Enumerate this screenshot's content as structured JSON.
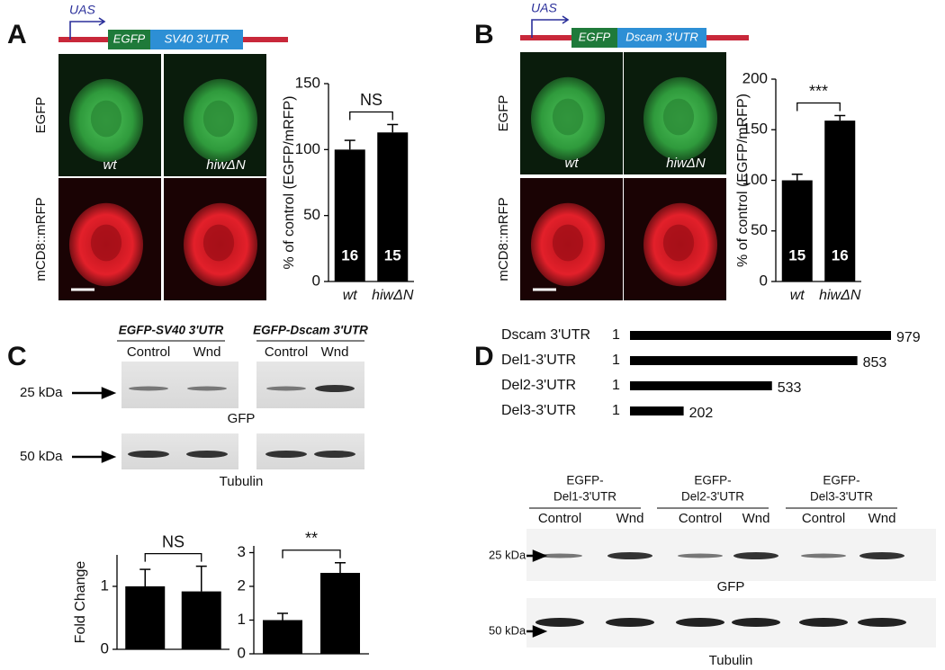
{
  "figure": {
    "panel_labels": [
      "A",
      "B",
      "C",
      "D"
    ],
    "construct_a": {
      "promoter": "UAS",
      "reporter": "EGFP",
      "utr": "SV40 3'UTR"
    },
    "construct_b": {
      "promoter": "UAS",
      "reporter": "EGFP",
      "utr": "Dscam 3'UTR"
    },
    "images_a": {
      "rows": [
        "EGFP",
        "mCD8::mRFP"
      ],
      "cols": [
        "wt",
        "hiwΔN"
      ]
    },
    "images_b": {
      "rows": [
        "EGFP",
        "mCD8::mRFP"
      ],
      "cols": [
        "wt",
        "hiwΔN"
      ]
    },
    "blot_c": {
      "constructs": [
        "EGFP-SV40 3'UTR",
        "EGFP-Dscam 3'UTR"
      ],
      "lanes": [
        "Control",
        "Wnd",
        "Control",
        "Wnd"
      ],
      "markers": [
        "25 kDa",
        "50 kDa"
      ],
      "proteins": [
        "GFP",
        "Tubulin"
      ]
    },
    "blot_d": {
      "constructs": [
        [
          "EGFP-",
          "Del1-3'UTR"
        ],
        [
          "EGFP-",
          "Del2-3'UTR"
        ],
        [
          "EGFP-",
          "Del3-3'UTR"
        ]
      ],
      "lanes": [
        "Control",
        "Wnd",
        "Control",
        "Wnd",
        "Control",
        "Wnd"
      ],
      "markers": [
        "25 kDa",
        "50 kDa"
      ],
      "proteins": [
        "GFP",
        "Tubulin"
      ]
    }
  },
  "chart_data": [
    {
      "type": "bar",
      "ylabel": "% of control (EGFP/mRFP)",
      "categories": [
        "wt",
        "hiwΔN"
      ],
      "values": [
        100,
        113
      ],
      "errors": [
        7,
        6
      ],
      "n": [
        16,
        15
      ],
      "annotation": "NS",
      "color": "#000000",
      "ylim": [
        0,
        150
      ],
      "yticks": [
        0,
        50,
        100,
        150
      ]
    },
    {
      "type": "bar",
      "ylabel": "% of control (EGFP/mRFP)",
      "categories": [
        "wt",
        "hiwΔN"
      ],
      "values": [
        100,
        159
      ],
      "errors": [
        6,
        5
      ],
      "n": [
        15,
        16
      ],
      "annotation": "***",
      "color": "#000000",
      "ylim": [
        0,
        200
      ],
      "yticks": [
        0,
        50,
        100,
        150,
        200
      ]
    },
    {
      "type": "bar",
      "ylabel": "Fold Change",
      "values": [
        1,
        0.92
      ],
      "errors": [
        0.27,
        0.4
      ],
      "annotation": "NS",
      "color": "#000000",
      "ylim": [
        0,
        1.5
      ],
      "yticks": [
        0,
        1
      ]
    },
    {
      "type": "bar",
      "values": [
        1,
        2.4
      ],
      "errors": [
        0.2,
        0.3
      ],
      "annotation": "**",
      "color": "#000000",
      "ylim": [
        0,
        3.2
      ],
      "yticks": [
        0,
        1,
        2,
        3
      ]
    },
    {
      "type": "bar",
      "orientation": "horizontal",
      "categories": [
        "Dscam 3'UTR",
        "Del1-3'UTR",
        "Del2-3'UTR",
        "Del3-3'UTR"
      ],
      "start": 1,
      "values": [
        979,
        853,
        533,
        202
      ],
      "color": "#000000"
    }
  ]
}
